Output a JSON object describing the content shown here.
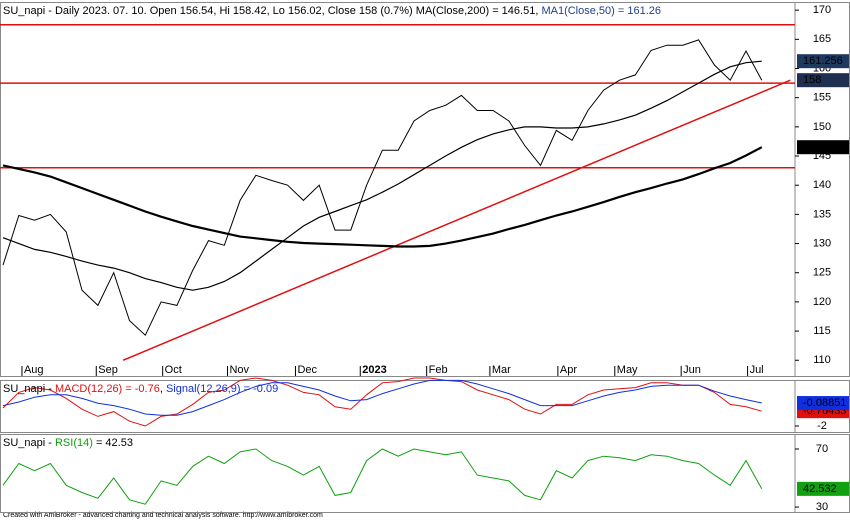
{
  "chart_data": [
    {
      "type": "line",
      "title_parts": [
        {
          "text": "SU_napi - Daily 2023. 07. 10. Open 156.54, Hi 158.42, Lo 156.02, Close 158 (0.7%) ",
          "color": "#000000"
        },
        {
          "text": "MA(Close,200) = 146.51",
          "color": "#000000"
        },
        {
          "text": ", ",
          "color": "#000000"
        },
        {
          "text": "MA1(Close,50) = 161.26",
          "color": "#1f3f8f"
        }
      ],
      "x": [
        0,
        1,
        2,
        3,
        4,
        5,
        6,
        7,
        8,
        9,
        10,
        11,
        12,
        13,
        14,
        15,
        16,
        17,
        18,
        19,
        20,
        21,
        22,
        23,
        24,
        25,
        26,
        27,
        28,
        29,
        30,
        31,
        32,
        33,
        34,
        35,
        36,
        37,
        38,
        39,
        40,
        41,
        42,
        43,
        44,
        45,
        46,
        47,
        48
      ],
      "xlim": [
        -0.19,
        50.1
      ],
      "xticks": [
        {
          "value": 1.2,
          "label": "Aug"
        },
        {
          "value": 5.9,
          "label": "Sep"
        },
        {
          "value": 10.1,
          "label": "Oct"
        },
        {
          "value": 14.2,
          "label": "Nov"
        },
        {
          "value": 18.5,
          "label": "Dec"
        },
        {
          "value": 22.6,
          "label": "2023"
        },
        {
          "value": 26.8,
          "label": "Feb"
        },
        {
          "value": 30.8,
          "label": "Mar"
        },
        {
          "value": 35.1,
          "label": "Apr"
        },
        {
          "value": 38.7,
          "label": "May"
        },
        {
          "value": 42.9,
          "label": "Jun"
        },
        {
          "value": 47.1,
          "label": "Jul"
        }
      ],
      "ylim": [
        107.3,
        171.4
      ],
      "yticks": [
        110,
        115,
        120,
        125,
        130,
        135,
        140,
        145,
        150,
        155,
        160,
        165,
        170
      ],
      "levels": [
        143,
        157.5,
        167.5
      ],
      "level_color": "#e01010",
      "trendline": {
        "x": [
          7.6,
          49.8
        ],
        "y": [
          110,
          158
        ],
        "color": "#e01010"
      },
      "series": [
        {
          "color": "#000000",
          "width": 1,
          "box": "#1f2f4f",
          "values": [
            126.3,
            134.8,
            134,
            135,
            132,
            122,
            119.4,
            125,
            116.8,
            114.3,
            120,
            119.4,
            125.4,
            130.5,
            129.7,
            137.4,
            141.7,
            140.8,
            140,
            137.4,
            140,
            132.3,
            132.3,
            140,
            146,
            146,
            151,
            152.8,
            153.7,
            155.4,
            152.8,
            152.8,
            151,
            146.8,
            143.4,
            149.4,
            147.7,
            152.8,
            156.3,
            158,
            158.9,
            163.1,
            164,
            164,
            164.9,
            160.6,
            158,
            163,
            158
          ]
        },
        {
          "color": "#000000",
          "width": 2.2,
          "box": "#000000",
          "values": [
            143.4,
            142.8,
            142.2,
            141.5,
            140.5,
            139.5,
            138.5,
            137.5,
            136.5,
            135.5,
            134.6,
            133.8,
            133,
            132.4,
            131.8,
            131.2,
            130.9,
            130.6,
            130.3,
            130.1,
            130,
            129.9,
            129.8,
            129.7,
            129.6,
            129.5,
            129.5,
            129.6,
            130,
            130.5,
            131.1,
            131.7,
            132.5,
            133.2,
            134,
            134.8,
            135.5,
            136.3,
            137.1,
            138,
            138.8,
            139.5,
            140.3,
            141,
            141.9,
            142.9,
            143.8,
            145.1,
            146.514
          ]
        },
        {
          "color": "#000000",
          "width": 1.2,
          "box": "#1f3a5f",
          "values": [
            131,
            130,
            129,
            128.5,
            127.8,
            127,
            126.3,
            125.8,
            125,
            124,
            123.3,
            122.5,
            122,
            122.5,
            123.5,
            125,
            127,
            129,
            131,
            133,
            134.5,
            135.5,
            136.5,
            137.5,
            138.8,
            140.2,
            141.8,
            143.4,
            145,
            146.5,
            147.8,
            148.8,
            149.5,
            150,
            150,
            149.8,
            149.8,
            150,
            150.5,
            151.2,
            152,
            153.2,
            154.5,
            156,
            157.5,
            159,
            160.3,
            161,
            161.256
          ]
        }
      ]
    },
    {
      "type": "line",
      "title_parts": [
        {
          "text": "SU_napi - ",
          "color": "#000000"
        },
        {
          "text": "MACD(12,26) = -0.76",
          "color": "#e01010"
        },
        {
          "text": ", ",
          "color": "#000000"
        },
        {
          "text": "Signal(12,26,9) = -0.09",
          "color": "#1030e0"
        }
      ],
      "x": [
        0,
        1,
        2,
        3,
        4,
        5,
        6,
        7,
        8,
        9,
        10,
        11,
        12,
        13,
        14,
        15,
        16,
        17,
        18,
        19,
        20,
        21,
        22,
        23,
        24,
        25,
        26,
        27,
        28,
        29,
        30,
        31,
        32,
        33,
        34,
        35,
        36,
        37,
        38,
        39,
        40,
        41,
        42,
        43,
        44,
        45,
        46,
        47,
        48
      ],
      "xlim": [
        -0.19,
        50.1
      ],
      "ylim": [
        -2.5,
        1.83
      ],
      "yticks": [
        -2
      ],
      "series": [
        {
          "color": "#e01010",
          "width": 1,
          "box": "#e01010",
          "values": [
            -0.5,
            0.8,
            1.2,
            1.0,
            0.3,
            -0.6,
            -1.2,
            -0.8,
            -1.6,
            -2.0,
            -1.2,
            -1.0,
            -0.2,
            0.8,
            1.0,
            1.8,
            2.0,
            1.8,
            1.4,
            0.8,
            0.6,
            -0.4,
            -0.6,
            0.6,
            1.6,
            1.7,
            2.0,
            2.0,
            1.8,
            1.7,
            1.0,
            0.6,
            0.2,
            -0.6,
            -1.0,
            -0.2,
            -0.2,
            0.6,
            1.0,
            1.1,
            1.2,
            1.6,
            1.6,
            1.4,
            1.4,
            0.8,
            -0.2,
            -0.4,
            -0.76433
          ]
        },
        {
          "color": "#1030e0",
          "width": 1,
          "box": "#1030e0",
          "values": [
            -0.3,
            0.0,
            0.4,
            0.6,
            0.6,
            0.3,
            -0.1,
            -0.3,
            -0.6,
            -1.0,
            -1.1,
            -1.1,
            -0.8,
            -0.3,
            0.2,
            0.8,
            1.3,
            1.6,
            1.6,
            1.3,
            1.0,
            0.5,
            0.1,
            0.2,
            0.7,
            1.1,
            1.5,
            1.8,
            1.8,
            1.8,
            1.5,
            1.1,
            0.7,
            0.2,
            -0.3,
            -0.3,
            -0.3,
            0.1,
            0.5,
            0.8,
            1.0,
            1.3,
            1.4,
            1.4,
            1.4,
            0.9,
            0.5,
            0.2,
            -0.08851
          ]
        }
      ]
    },
    {
      "type": "line",
      "title_parts": [
        {
          "text": "SU_napi - ",
          "color": "#000000"
        },
        {
          "text": "RSI(14)",
          "color": "#10a010"
        },
        {
          "text": " = 42.53",
          "color": "#000000"
        }
      ],
      "x": [
        0,
        1,
        2,
        3,
        4,
        5,
        6,
        7,
        8,
        9,
        10,
        11,
        12,
        13,
        14,
        15,
        16,
        17,
        18,
        19,
        20,
        21,
        22,
        23,
        24,
        25,
        26,
        27,
        28,
        29,
        30,
        31,
        32,
        33,
        34,
        35,
        36,
        37,
        38,
        39,
        40,
        41,
        42,
        43,
        44,
        45,
        46,
        47,
        48
      ],
      "xlim": [
        -0.19,
        50.1
      ],
      "ylim": [
        26.6,
        80.3
      ],
      "yticks": [
        30,
        70
      ],
      "series": [
        {
          "color": "#10a010",
          "width": 1,
          "box": "#10a010",
          "values": [
            45,
            60,
            55,
            60,
            45,
            40,
            36,
            50,
            35,
            32,
            48,
            45,
            58,
            65,
            60,
            68,
            70,
            62,
            58,
            52,
            58,
            38,
            40,
            62,
            70,
            65,
            70,
            68,
            66,
            68,
            52,
            50,
            48,
            38,
            35,
            55,
            50,
            62,
            65,
            64,
            62,
            66,
            65,
            62,
            60,
            52,
            45,
            62,
            42.532
          ]
        }
      ]
    }
  ],
  "footer": "Created with AmiBroker - advanced charting and technical analysis software. http://www.amibroker.com"
}
